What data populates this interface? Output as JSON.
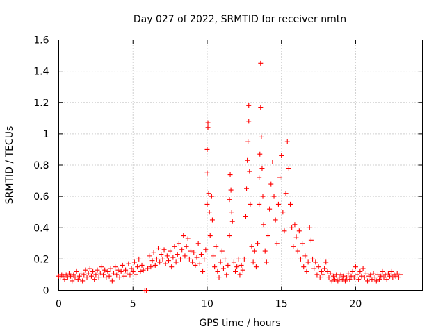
{
  "chart_data": {
    "type": "scatter",
    "title": "Day 027 of 2022, SRMTID for receiver nmtn",
    "xlabel": "GPS time / hours",
    "ylabel": "SRMTID / TECUs",
    "xlim": [
      0,
      24.5
    ],
    "ylim": [
      0,
      1.6
    ],
    "xticks": [
      0,
      5,
      10,
      15,
      20
    ],
    "xtick_labels": [
      "0",
      "5",
      "10",
      "15",
      "20"
    ],
    "yticks": [
      0,
      0.2,
      0.4,
      0.6,
      0.8,
      1.0,
      1.2,
      1.4,
      1.6
    ],
    "ytick_labels": [
      "0",
      "0.2",
      "0.4",
      "0.6",
      "0.8",
      "1",
      "1.2",
      "1.4",
      "1.6"
    ],
    "grid": true,
    "marker": "+",
    "marker_color": "#ff0000",
    "series": [
      {
        "name": "SRMTID",
        "points": [
          [
            0.0,
            0.09
          ],
          [
            0.1,
            0.08
          ],
          [
            0.2,
            0.1
          ],
          [
            0.3,
            0.09
          ],
          [
            0.4,
            0.07
          ],
          [
            0.5,
            0.1
          ],
          [
            0.6,
            0.08
          ],
          [
            0.7,
            0.11
          ],
          [
            0.8,
            0.09
          ],
          [
            0.9,
            0.06
          ],
          [
            1.0,
            0.1
          ],
          [
            1.1,
            0.08
          ],
          [
            1.2,
            0.12
          ],
          [
            1.3,
            0.07
          ],
          [
            1.4,
            0.09
          ],
          [
            1.5,
            0.11
          ],
          [
            1.6,
            0.06
          ],
          [
            1.7,
            0.1
          ],
          [
            1.8,
            0.13
          ],
          [
            1.9,
            0.08
          ],
          [
            2.0,
            0.11
          ],
          [
            2.1,
            0.14
          ],
          [
            2.2,
            0.09
          ],
          [
            2.3,
            0.12
          ],
          [
            2.4,
            0.07
          ],
          [
            2.5,
            0.1
          ],
          [
            2.6,
            0.13
          ],
          [
            2.7,
            0.08
          ],
          [
            2.8,
            0.11
          ],
          [
            2.9,
            0.15
          ],
          [
            3.0,
            0.1
          ],
          [
            3.1,
            0.13
          ],
          [
            3.2,
            0.08
          ],
          [
            3.3,
            0.12
          ],
          [
            3.4,
            0.09
          ],
          [
            3.5,
            0.14
          ],
          [
            3.6,
            0.06
          ],
          [
            3.7,
            0.11
          ],
          [
            3.8,
            0.15
          ],
          [
            3.9,
            0.1
          ],
          [
            4.0,
            0.13
          ],
          [
            4.1,
            0.08
          ],
          [
            4.2,
            0.12
          ],
          [
            4.3,
            0.16
          ],
          [
            4.4,
            0.09
          ],
          [
            4.5,
            0.13
          ],
          [
            4.6,
            0.11
          ],
          [
            4.7,
            0.17
          ],
          [
            4.8,
            0.1
          ],
          [
            4.9,
            0.14
          ],
          [
            5.0,
            0.12
          ],
          [
            5.1,
            0.18
          ],
          [
            5.2,
            0.1
          ],
          [
            5.3,
            0.15
          ],
          [
            5.4,
            0.2
          ],
          [
            5.5,
            0.12
          ],
          [
            5.6,
            0.16
          ],
          [
            5.7,
            0.13
          ],
          [
            5.8,
            0.0
          ],
          [
            5.9,
            0.0
          ],
          [
            6.0,
            0.14
          ],
          [
            6.1,
            0.22
          ],
          [
            6.2,
            0.15
          ],
          [
            6.3,
            0.19
          ],
          [
            6.4,
            0.24
          ],
          [
            6.5,
            0.16
          ],
          [
            6.6,
            0.2
          ],
          [
            6.7,
            0.27
          ],
          [
            6.8,
            0.18
          ],
          [
            6.9,
            0.23
          ],
          [
            7.0,
            0.2
          ],
          [
            7.1,
            0.26
          ],
          [
            7.2,
            0.17
          ],
          [
            7.3,
            0.22
          ],
          [
            7.4,
            0.19
          ],
          [
            7.5,
            0.25
          ],
          [
            7.6,
            0.15
          ],
          [
            7.7,
            0.21
          ],
          [
            7.8,
            0.28
          ],
          [
            7.9,
            0.18
          ],
          [
            8.0,
            0.23
          ],
          [
            8.1,
            0.3
          ],
          [
            8.2,
            0.2
          ],
          [
            8.3,
            0.26
          ],
          [
            8.4,
            0.35
          ],
          [
            8.5,
            0.22
          ],
          [
            8.6,
            0.28
          ],
          [
            8.7,
            0.33
          ],
          [
            8.8,
            0.2
          ],
          [
            8.9,
            0.25
          ],
          [
            9.0,
            0.18
          ],
          [
            9.1,
            0.24
          ],
          [
            9.2,
            0.16
          ],
          [
            9.3,
            0.21
          ],
          [
            9.4,
            0.3
          ],
          [
            9.5,
            0.17
          ],
          [
            9.6,
            0.23
          ],
          [
            9.7,
            0.12
          ],
          [
            9.8,
            0.2
          ],
          [
            9.9,
            0.26
          ],
          [
            10.0,
            0.55
          ],
          [
            10.0,
            0.75
          ],
          [
            10.0,
            0.9
          ],
          [
            10.05,
            1.07
          ],
          [
            10.05,
            1.04
          ],
          [
            10.1,
            0.62
          ],
          [
            10.15,
            0.5
          ],
          [
            10.2,
            0.35
          ],
          [
            10.3,
            0.6
          ],
          [
            10.35,
            0.45
          ],
          [
            10.4,
            0.22
          ],
          [
            10.5,
            0.15
          ],
          [
            10.6,
            0.28
          ],
          [
            10.7,
            0.12
          ],
          [
            10.8,
            0.08
          ],
          [
            10.9,
            0.18
          ],
          [
            11.0,
            0.25
          ],
          [
            11.1,
            0.14
          ],
          [
            11.2,
            0.2
          ],
          [
            11.3,
            0.1
          ],
          [
            11.4,
            0.16
          ],
          [
            11.5,
            0.35
          ],
          [
            11.5,
            0.58
          ],
          [
            11.55,
            0.74
          ],
          [
            11.6,
            0.64
          ],
          [
            11.65,
            0.5
          ],
          [
            11.7,
            0.44
          ],
          [
            11.8,
            0.18
          ],
          [
            11.9,
            0.12
          ],
          [
            12.0,
            0.15
          ],
          [
            12.1,
            0.2
          ],
          [
            12.2,
            0.1
          ],
          [
            12.3,
            0.16
          ],
          [
            12.4,
            0.13
          ],
          [
            12.5,
            0.2
          ],
          [
            12.6,
            0.47
          ],
          [
            12.65,
            0.65
          ],
          [
            12.7,
            0.83
          ],
          [
            12.75,
            0.95
          ],
          [
            12.8,
            1.18
          ],
          [
            12.8,
            1.08
          ],
          [
            12.85,
            0.76
          ],
          [
            12.9,
            0.55
          ],
          [
            13.0,
            0.28
          ],
          [
            13.1,
            0.18
          ],
          [
            13.2,
            0.25
          ],
          [
            13.3,
            0.15
          ],
          [
            13.4,
            0.3
          ],
          [
            13.5,
            0.55
          ],
          [
            13.5,
            0.72
          ],
          [
            13.55,
            0.87
          ],
          [
            13.6,
            1.45
          ],
          [
            13.6,
            1.17
          ],
          [
            13.65,
            0.98
          ],
          [
            13.7,
            0.78
          ],
          [
            13.75,
            0.6
          ],
          [
            13.8,
            0.42
          ],
          [
            13.9,
            0.25
          ],
          [
            14.0,
            0.18
          ],
          [
            14.1,
            0.35
          ],
          [
            14.2,
            0.52
          ],
          [
            14.3,
            0.68
          ],
          [
            14.4,
            0.82
          ],
          [
            14.5,
            0.6
          ],
          [
            14.6,
            0.45
          ],
          [
            14.7,
            0.3
          ],
          [
            14.8,
            0.55
          ],
          [
            14.9,
            0.72
          ],
          [
            15.0,
            0.86
          ],
          [
            15.1,
            0.5
          ],
          [
            15.2,
            0.38
          ],
          [
            15.3,
            0.62
          ],
          [
            15.4,
            0.95
          ],
          [
            15.5,
            0.78
          ],
          [
            15.6,
            0.55
          ],
          [
            15.7,
            0.4
          ],
          [
            15.8,
            0.28
          ],
          [
            15.9,
            0.42
          ],
          [
            16.0,
            0.34
          ],
          [
            16.1,
            0.25
          ],
          [
            16.2,
            0.38
          ],
          [
            16.3,
            0.2
          ],
          [
            16.4,
            0.3
          ],
          [
            16.5,
            0.15
          ],
          [
            16.6,
            0.22
          ],
          [
            16.7,
            0.12
          ],
          [
            16.8,
            0.18
          ],
          [
            16.9,
            0.4
          ],
          [
            17.0,
            0.32
          ],
          [
            17.1,
            0.2
          ],
          [
            17.2,
            0.14
          ],
          [
            17.3,
            0.18
          ],
          [
            17.4,
            0.1
          ],
          [
            17.5,
            0.15
          ],
          [
            17.6,
            0.08
          ],
          [
            17.7,
            0.12
          ],
          [
            17.8,
            0.1
          ],
          [
            17.9,
            0.14
          ],
          [
            18.0,
            0.18
          ],
          [
            18.1,
            0.12
          ],
          [
            18.2,
            0.08
          ],
          [
            18.3,
            0.11
          ],
          [
            18.4,
            0.06
          ],
          [
            18.5,
            0.09
          ],
          [
            18.6,
            0.07
          ],
          [
            18.7,
            0.1
          ],
          [
            18.8,
            0.06
          ],
          [
            18.9,
            0.08
          ],
          [
            19.0,
            0.1
          ],
          [
            19.1,
            0.07
          ],
          [
            19.2,
            0.09
          ],
          [
            19.3,
            0.06
          ],
          [
            19.4,
            0.08
          ],
          [
            19.5,
            0.11
          ],
          [
            19.6,
            0.07
          ],
          [
            19.7,
            0.09
          ],
          [
            19.8,
            0.12
          ],
          [
            19.9,
            0.08
          ],
          [
            20.0,
            0.15
          ],
          [
            20.1,
            0.1
          ],
          [
            20.2,
            0.07
          ],
          [
            20.3,
            0.12
          ],
          [
            20.4,
            0.09
          ],
          [
            20.5,
            0.14
          ],
          [
            20.6,
            0.08
          ],
          [
            20.7,
            0.11
          ],
          [
            20.8,
            0.06
          ],
          [
            20.9,
            0.09
          ],
          [
            21.0,
            0.1
          ],
          [
            21.1,
            0.07
          ],
          [
            21.2,
            0.11
          ],
          [
            21.3,
            0.08
          ],
          [
            21.4,
            0.06
          ],
          [
            21.5,
            0.1
          ],
          [
            21.6,
            0.07
          ],
          [
            21.7,
            0.09
          ],
          [
            21.8,
            0.12
          ],
          [
            21.9,
            0.08
          ],
          [
            22.0,
            0.1
          ],
          [
            22.1,
            0.07
          ],
          [
            22.2,
            0.11
          ],
          [
            22.3,
            0.09
          ],
          [
            22.4,
            0.12
          ],
          [
            22.5,
            0.08
          ],
          [
            22.6,
            0.1
          ],
          [
            22.7,
            0.09
          ],
          [
            22.8,
            0.11
          ],
          [
            22.9,
            0.08
          ],
          [
            23.0,
            0.1
          ]
        ]
      }
    ]
  }
}
